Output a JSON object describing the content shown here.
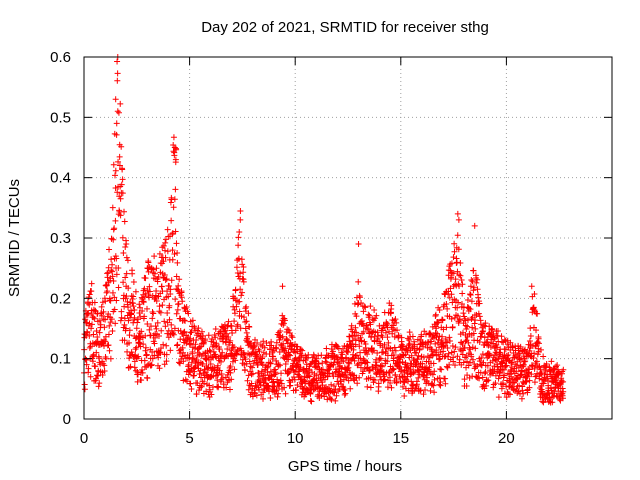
{
  "chart_data": {
    "type": "scatter",
    "title": "Day 202 of 2021, SRMTID for receiver sthg",
    "xlabel": "GPS time / hours",
    "ylabel": "SRMTID / TECUs",
    "xlim": [
      0,
      25
    ],
    "ylim": [
      0,
      0.6
    ],
    "xticks": [
      0,
      5,
      10,
      15,
      20
    ],
    "xtick_labels": [
      "0",
      "5",
      "10",
      "15",
      "20"
    ],
    "yticks": [
      0,
      0.1,
      0.2,
      0.3,
      0.4,
      0.5,
      0.6
    ],
    "ytick_labels": [
      "0",
      "0.1",
      "0.2",
      "0.3",
      "0.4",
      "0.5",
      "0.6"
    ],
    "grid": true,
    "marker": "+",
    "series": [
      {
        "name": "SRMTID",
        "color": "#ff0000",
        "profile": [
          [
            0.0,
            0.1
          ],
          [
            0.3,
            0.16
          ],
          [
            0.7,
            0.11
          ],
          [
            1.0,
            0.15
          ],
          [
            1.3,
            0.21
          ],
          [
            1.5,
            0.36
          ],
          [
            1.6,
            0.45
          ],
          [
            1.8,
            0.3
          ],
          [
            2.0,
            0.2
          ],
          [
            2.3,
            0.17
          ],
          [
            2.6,
            0.13
          ],
          [
            3.0,
            0.17
          ],
          [
            3.4,
            0.18
          ],
          [
            3.7,
            0.19
          ],
          [
            4.0,
            0.22
          ],
          [
            4.2,
            0.3
          ],
          [
            4.35,
            0.33
          ],
          [
            4.5,
            0.16
          ],
          [
            5.0,
            0.11
          ],
          [
            6.0,
            0.09
          ],
          [
            7.0,
            0.12
          ],
          [
            7.4,
            0.24
          ],
          [
            7.6,
            0.14
          ],
          [
            8.0,
            0.09
          ],
          [
            9.0,
            0.08
          ],
          [
            9.4,
            0.12
          ],
          [
            10.0,
            0.08
          ],
          [
            11.0,
            0.07
          ],
          [
            12.0,
            0.08
          ],
          [
            12.6,
            0.09
          ],
          [
            13.0,
            0.16
          ],
          [
            13.3,
            0.13
          ],
          [
            14.0,
            0.11
          ],
          [
            14.5,
            0.13
          ],
          [
            15.0,
            0.09
          ],
          [
            16.0,
            0.09
          ],
          [
            16.5,
            0.11
          ],
          [
            17.0,
            0.13
          ],
          [
            17.7,
            0.21
          ],
          [
            18.0,
            0.12
          ],
          [
            18.5,
            0.17
          ],
          [
            18.8,
            0.12
          ],
          [
            19.5,
            0.1
          ],
          [
            20.0,
            0.09
          ],
          [
            20.5,
            0.08
          ],
          [
            21.0,
            0.08
          ],
          [
            21.3,
            0.15
          ],
          [
            21.6,
            0.08
          ],
          [
            22.0,
            0.06
          ],
          [
            22.7,
            0.06
          ]
        ],
        "peaks": [
          [
            1.5,
            0.53
          ],
          [
            1.6,
            0.51
          ],
          [
            1.55,
            0.49
          ],
          [
            4.3,
            0.45
          ],
          [
            4.35,
            0.43
          ],
          [
            7.4,
            0.33
          ],
          [
            7.35,
            0.31
          ],
          [
            13.0,
            0.29
          ],
          [
            17.7,
            0.34
          ],
          [
            17.75,
            0.33
          ],
          [
            18.5,
            0.32
          ],
          [
            21.2,
            0.22
          ],
          [
            3.0,
            0.25
          ],
          [
            2.0,
            0.29
          ],
          [
            9.4,
            0.22
          ]
        ],
        "x_range": [
          0.0,
          22.7
        ],
        "sample_count": 2600
      }
    ]
  }
}
